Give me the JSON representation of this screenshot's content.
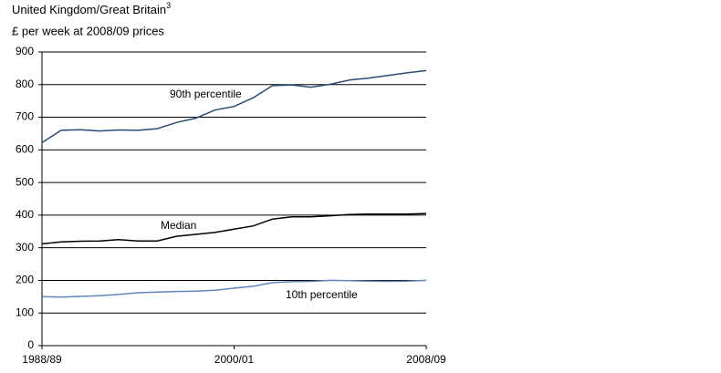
{
  "chart_data": {
    "type": "line",
    "title": "United Kingdom/Great Britain",
    "title_superscript": "3",
    "subtitle": "£ per week at 2008/09 prices",
    "categories": [
      "1988/89",
      null,
      null,
      null,
      null,
      null,
      null,
      null,
      null,
      null,
      "2000/01",
      null,
      null,
      null,
      null,
      null,
      null,
      null,
      null,
      null,
      "2008/09"
    ],
    "series": [
      {
        "name": "90th percentile",
        "color": "#2b4a78",
        "values": [
          622,
          660,
          662,
          658,
          661,
          660,
          665,
          684,
          697,
          722,
          733,
          760,
          797,
          799,
          792,
          801,
          814,
          820,
          828,
          836,
          843
        ]
      },
      {
        "name": "Median",
        "color": "#000000",
        "values": [
          312,
          318,
          320,
          321,
          325,
          321,
          321,
          335,
          341,
          347,
          357,
          367,
          388,
          395,
          395,
          398,
          402,
          403,
          403,
          403,
          405
        ]
      },
      {
        "name": "10th percentile",
        "color": "#5f86bd",
        "values": [
          150,
          149,
          151,
          153,
          157,
          162,
          164,
          166,
          167,
          170,
          176,
          182,
          193,
          196,
          197,
          200,
          199,
          198,
          197,
          198,
          200
        ]
      }
    ],
    "ylim": [
      0,
      900
    ],
    "yticks": [
      0,
      100,
      200,
      300,
      400,
      500,
      600,
      700,
      800,
      900
    ],
    "grid": true
  }
}
